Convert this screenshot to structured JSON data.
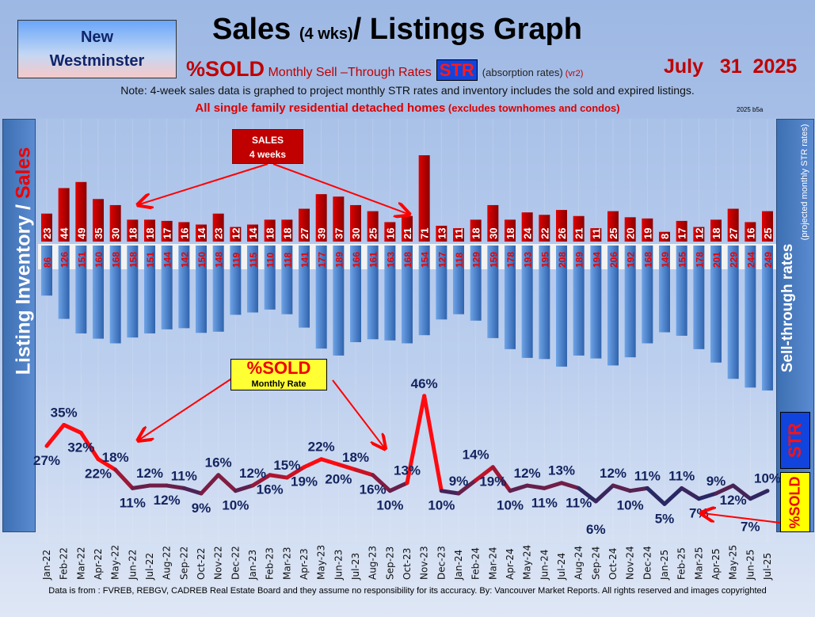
{
  "header": {
    "region": [
      "New",
      "Westminster"
    ],
    "title_a": "Sales ",
    "title_b": "(4 wks)",
    "title_c": "/ Listings Graph",
    "sub_sold": "%SOLD",
    "sub_rates": " Monthly Sell –Through Rates",
    "sub_str": "STR",
    "sub_abs": "(absorption rates)",
    "sub_vr": " (vr2)",
    "date": "July   31  2025",
    "note": "Note: 4-week sales data is graphed to project monthly STR rates and inventory includes the sold and expired listings.",
    "homes": "All single family residential detached homes",
    "homes_sm": " (excludes townhomes and condos)",
    "version": "2025 b5a"
  },
  "panels": {
    "left_a": "Listing Inventory / ",
    "left_b": "Sales",
    "right_main": "Sell-through rates",
    "right_sub": "(projected monthly STR rates)",
    "str": "STR",
    "sold": "%SOLD"
  },
  "annotations": {
    "sales_a": "SALES",
    "sales_b": "4  weeks",
    "sold_a": "%SOLD",
    "sold_b": "Monthly Rate"
  },
  "footer": "Data is from : FVREB, REBGV, CADREB Real Estate Board and they assume no responsibility for its accuracy. By: Vancouver Market Reports. All rights reserved and  images copyrighted",
  "colors": {
    "sales": "#c00000",
    "inventory": "#4a86d0",
    "line_high": "#ff1010",
    "line_low": "#1a2a6a"
  },
  "chart_data": {
    "type": "bar",
    "title": "Sales (4 wks)/ Listings Graph",
    "categories": [
      "Jan-22",
      "Feb-22",
      "Mar-22",
      "Apr-22",
      "May-22",
      "Jun-22",
      "Jul-22",
      "Aug-22",
      "Sep-22",
      "Oct-22",
      "Nov-22",
      "Dec-22",
      "Jan-23",
      "Feb-23",
      "Mar-23",
      "Apr-23",
      "May-23",
      "Jun-23",
      "Jul-23",
      "Aug-23",
      "Sep-23",
      "Oct-23",
      "Nov-23",
      "Dec-23",
      "Jan-24",
      "Feb-24",
      "Mar-24",
      "Apr-24",
      "May-24",
      "Jun-24",
      "Jul-24",
      "Aug-24",
      "Sep-24",
      "Oct-24",
      "Nov-24",
      "Dec-24",
      "Jan-25",
      "Feb-25",
      "Mar-25",
      "Apr-25",
      "May-25",
      "Jun-25",
      "Jul-25"
    ],
    "series": [
      {
        "name": "Sales (4 weeks)",
        "type": "bar",
        "values": [
          23,
          44,
          49,
          35,
          30,
          18,
          18,
          17,
          16,
          14,
          23,
          12,
          14,
          18,
          18,
          27,
          39,
          37,
          30,
          25,
          16,
          21,
          71,
          13,
          11,
          18,
          30,
          18,
          24,
          22,
          26,
          21,
          11,
          25,
          20,
          19,
          8,
          17,
          12,
          18,
          27,
          16,
          25
        ]
      },
      {
        "name": "Listing Inventory",
        "type": "bar",
        "values": [
          86,
          126,
          151,
          160,
          168,
          158,
          151,
          144,
          142,
          150,
          148,
          119,
          115,
          110,
          118,
          141,
          177,
          189,
          166,
          161,
          163,
          168,
          154,
          127,
          118,
          129,
          159,
          178,
          193,
          195,
          208,
          189,
          194,
          206,
          192,
          168,
          149,
          155,
          178,
          201,
          229,
          244,
          249
        ]
      },
      {
        "name": "%SOLD Monthly Rate",
        "type": "line",
        "unit": "%",
        "values": [
          27,
          35,
          32,
          22,
          18,
          11,
          12,
          12,
          11,
          9,
          16,
          10,
          12,
          16,
          15,
          19,
          22,
          20,
          18,
          16,
          10,
          13,
          46,
          10,
          9,
          14,
          19,
          10,
          12,
          11,
          13,
          11,
          6,
          12,
          10,
          11,
          5,
          11,
          7,
          9,
          12,
          7,
          10
        ]
      }
    ],
    "ylabel_left": "Listing Inventory / Sales",
    "ylabel_right": "Sell-through rates"
  }
}
